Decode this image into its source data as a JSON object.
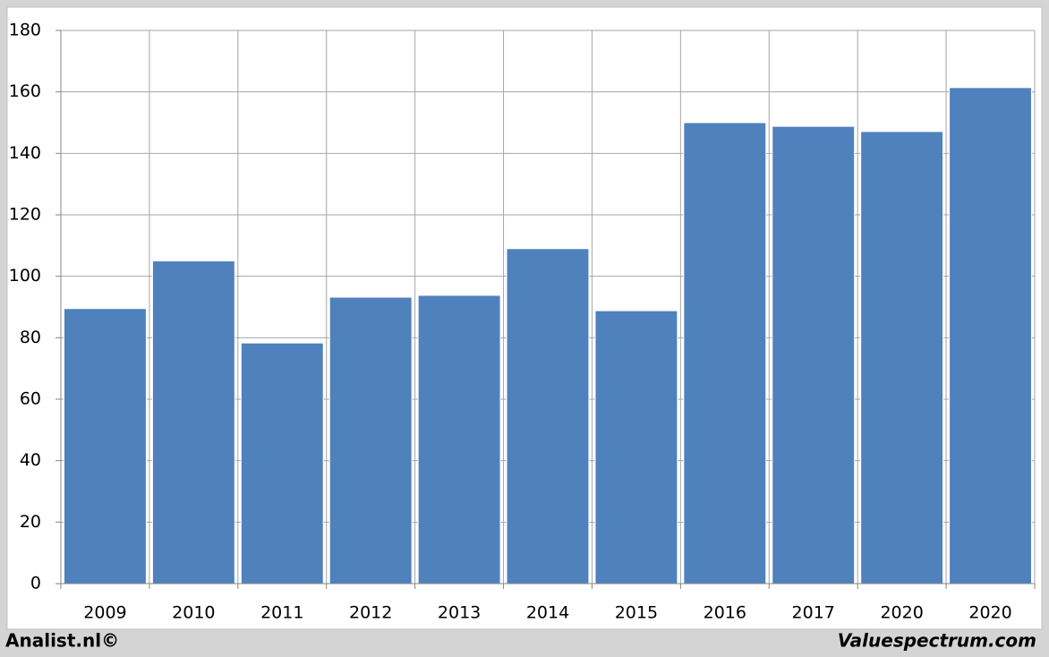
{
  "chart_data": {
    "type": "bar",
    "categories": [
      "2009",
      "2010",
      "2011",
      "2012",
      "2013",
      "2014",
      "2015",
      "2016",
      "2017",
      "2020",
      "2020"
    ],
    "values": [
      89.5,
      105,
      78.3,
      93.2,
      93.8,
      109,
      88.8,
      150,
      148.8,
      147.1,
      161.4
    ],
    "color": "#4f81bd",
    "ylim": [
      0,
      180
    ],
    "yticks": [
      0,
      20,
      40,
      60,
      80,
      100,
      120,
      140,
      160,
      180
    ],
    "grid": true
  },
  "footer": {
    "left": "Analist.nl©",
    "right": "Valuespectrum.com"
  }
}
